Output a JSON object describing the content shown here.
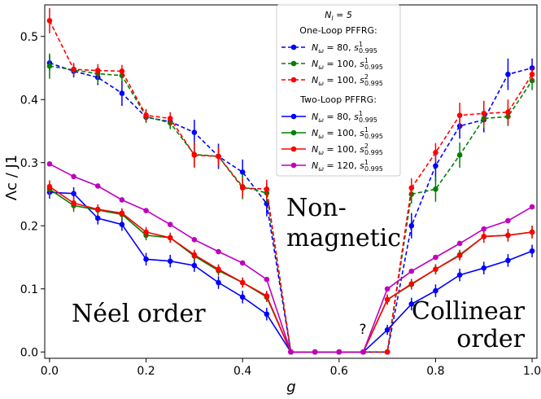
{
  "chart_data": {
    "type": "line",
    "xlabel": "g",
    "ylabel": "Λc / J1",
    "xlim": [
      -0.01,
      1.01
    ],
    "ylim": [
      -0.01,
      0.55
    ],
    "xticks": [
      "0.0",
      "0.2",
      "0.4",
      "0.6",
      "0.8",
      "1.0"
    ],
    "xtick_values": [
      0.0,
      0.2,
      0.4,
      0.6,
      0.8,
      1.0
    ],
    "yticks": [
      "0.0",
      "0.1",
      "0.2",
      "0.3",
      "0.4",
      "0.5"
    ],
    "ytick_values": [
      0.0,
      0.1,
      0.2,
      0.3,
      0.4,
      0.5
    ],
    "grid": false,
    "legend_position": "top-center",
    "legend": {
      "header": "N_l = 5",
      "group1": "One-Loop PFFRG:",
      "group2": "Two-Loop PFFRG:"
    },
    "annotations": {
      "neel": "Néel order",
      "nonmagnetic_1": "Non-",
      "nonmagnetic_2": "magnetic",
      "collinear_1": "Collinear",
      "collinear_2": "order",
      "question": "?"
    },
    "x": [
      0.0,
      0.05,
      0.1,
      0.15,
      0.2,
      0.25,
      0.3,
      0.35,
      0.4,
      0.45,
      0.5,
      0.55,
      0.6,
      0.65,
      0.7,
      0.75,
      0.8,
      0.85,
      0.9,
      0.95,
      1.0
    ],
    "series": [
      {
        "name": "Nω = 80, s¹₀.₉₉₅",
        "legend_n": "80",
        "legend_sup": "1",
        "group": "one-loop",
        "style": "dashed",
        "color": "#0000ff",
        "values": [
          0.458,
          0.445,
          0.435,
          0.41,
          0.372,
          0.365,
          0.348,
          0.31,
          0.285,
          0.235,
          0.0,
          0.0,
          0.0,
          0.0,
          0.0,
          0.2,
          0.295,
          0.358,
          0.368,
          0.44,
          0.45
        ],
        "errors": [
          0.012,
          0.01,
          0.012,
          0.02,
          0.008,
          0.01,
          0.02,
          0.02,
          0.02,
          0.02,
          0.0,
          0.0,
          0.0,
          0.0,
          0.0,
          0.02,
          0.025,
          0.02,
          0.02,
          0.025,
          0.015
        ]
      },
      {
        "name": "Nω = 100, s¹₀.₉₉₅",
        "legend_n": "100",
        "legend_sup": "1",
        "group": "one-loop",
        "style": "dashed",
        "color": "#008000",
        "values": [
          0.453,
          0.447,
          0.441,
          0.438,
          0.373,
          0.363,
          0.313,
          0.31,
          0.262,
          0.252,
          0.0,
          0.0,
          0.0,
          0.0,
          0.0,
          0.25,
          0.258,
          0.312,
          0.37,
          0.373,
          0.43
        ],
        "errors": [
          0.02,
          0.01,
          0.015,
          0.01,
          0.01,
          0.01,
          0.02,
          0.01,
          0.02,
          0.015,
          0.0,
          0.0,
          0.0,
          0.0,
          0.0,
          0.015,
          0.02,
          0.02,
          0.015,
          0.015,
          0.015
        ]
      },
      {
        "name": "Nω = 100, s²₀.₉₉₅",
        "legend_n": "100",
        "legend_sup": "2",
        "group": "one-loop",
        "style": "dashed",
        "color": "#ff0000",
        "values": [
          0.525,
          0.448,
          0.446,
          0.445,
          0.375,
          0.37,
          0.312,
          0.31,
          0.26,
          0.258,
          0.0,
          0.0,
          0.0,
          0.0,
          0.0,
          0.26,
          0.316,
          0.375,
          0.378,
          0.38,
          0.44
        ],
        "errors": [
          0.02,
          0.01,
          0.01,
          0.01,
          0.01,
          0.01,
          0.02,
          0.015,
          0.015,
          0.015,
          0.0,
          0.0,
          0.0,
          0.0,
          0.0,
          0.015,
          0.015,
          0.02,
          0.02,
          0.02,
          0.01
        ]
      },
      {
        "name": "Nω = 80, s¹₀.₉₉₅",
        "legend_n": "80",
        "legend_sup": "1",
        "group": "two-loop",
        "style": "solid",
        "color": "#0000ff",
        "values": [
          0.253,
          0.251,
          0.212,
          0.202,
          0.147,
          0.144,
          0.137,
          0.11,
          0.087,
          0.06,
          0.0,
          0.0,
          0.0,
          0.0,
          0.035,
          0.076,
          0.097,
          0.122,
          0.133,
          0.145,
          0.16
        ],
        "errors": [
          0.01,
          0.01,
          0.01,
          0.01,
          0.01,
          0.01,
          0.01,
          0.01,
          0.01,
          0.01,
          0.0,
          0.0,
          0.0,
          0.0,
          0.008,
          0.01,
          0.01,
          0.01,
          0.01,
          0.01,
          0.01
        ]
      },
      {
        "name": "Nω = 100, s¹₀.₉₉₅",
        "legend_n": "100",
        "legend_sup": "1",
        "group": "two-loop",
        "style": "solid",
        "color": "#008000",
        "values": [
          0.258,
          0.232,
          0.225,
          0.218,
          0.185,
          0.181,
          0.152,
          0.129,
          0.11,
          0.087,
          0.0,
          0.0,
          0.0,
          0.0,
          0.083,
          0.107,
          0.131,
          0.154,
          0.183,
          0.185,
          0.19
        ],
        "errors": [
          0.01,
          0.01,
          0.008,
          0.008,
          0.008,
          0.008,
          0.008,
          0.008,
          0.008,
          0.008,
          0.0,
          0.0,
          0.0,
          0.0,
          0.008,
          0.008,
          0.008,
          0.008,
          0.01,
          0.01,
          0.01
        ]
      },
      {
        "name": "Nω = 100, s²₀.₉₉₅",
        "legend_n": "100",
        "legend_sup": "2",
        "group": "two-loop",
        "style": "solid",
        "color": "#ff0000",
        "values": [
          0.262,
          0.236,
          0.226,
          0.22,
          0.19,
          0.181,
          0.154,
          0.131,
          0.11,
          0.089,
          0.0,
          0.0,
          0.0,
          0.0,
          0.083,
          0.108,
          0.131,
          0.153,
          0.183,
          0.185,
          0.19
        ],
        "errors": [
          0.01,
          0.01,
          0.008,
          0.008,
          0.008,
          0.008,
          0.008,
          0.008,
          0.008,
          0.008,
          0.0,
          0.0,
          0.0,
          0.0,
          0.008,
          0.008,
          0.008,
          0.008,
          0.01,
          0.01,
          0.01
        ]
      },
      {
        "name": "Nω = 120, s¹₀.₉₉₅",
        "legend_n": "120",
        "legend_sup": "1",
        "group": "two-loop",
        "style": "solid",
        "color": "#bf00bf",
        "values": [
          0.298,
          0.278,
          0.263,
          0.241,
          0.224,
          0.202,
          0.178,
          0.159,
          0.141,
          0.115,
          0.0,
          0.0,
          0.0,
          0.0,
          0.1,
          0.128,
          0.15,
          0.172,
          0.195,
          0.208,
          0.23
        ],
        "errors": [
          0,
          0,
          0,
          0,
          0,
          0,
          0,
          0,
          0,
          0,
          0,
          0,
          0,
          0,
          0,
          0,
          0,
          0,
          0,
          0,
          0
        ]
      }
    ]
  }
}
